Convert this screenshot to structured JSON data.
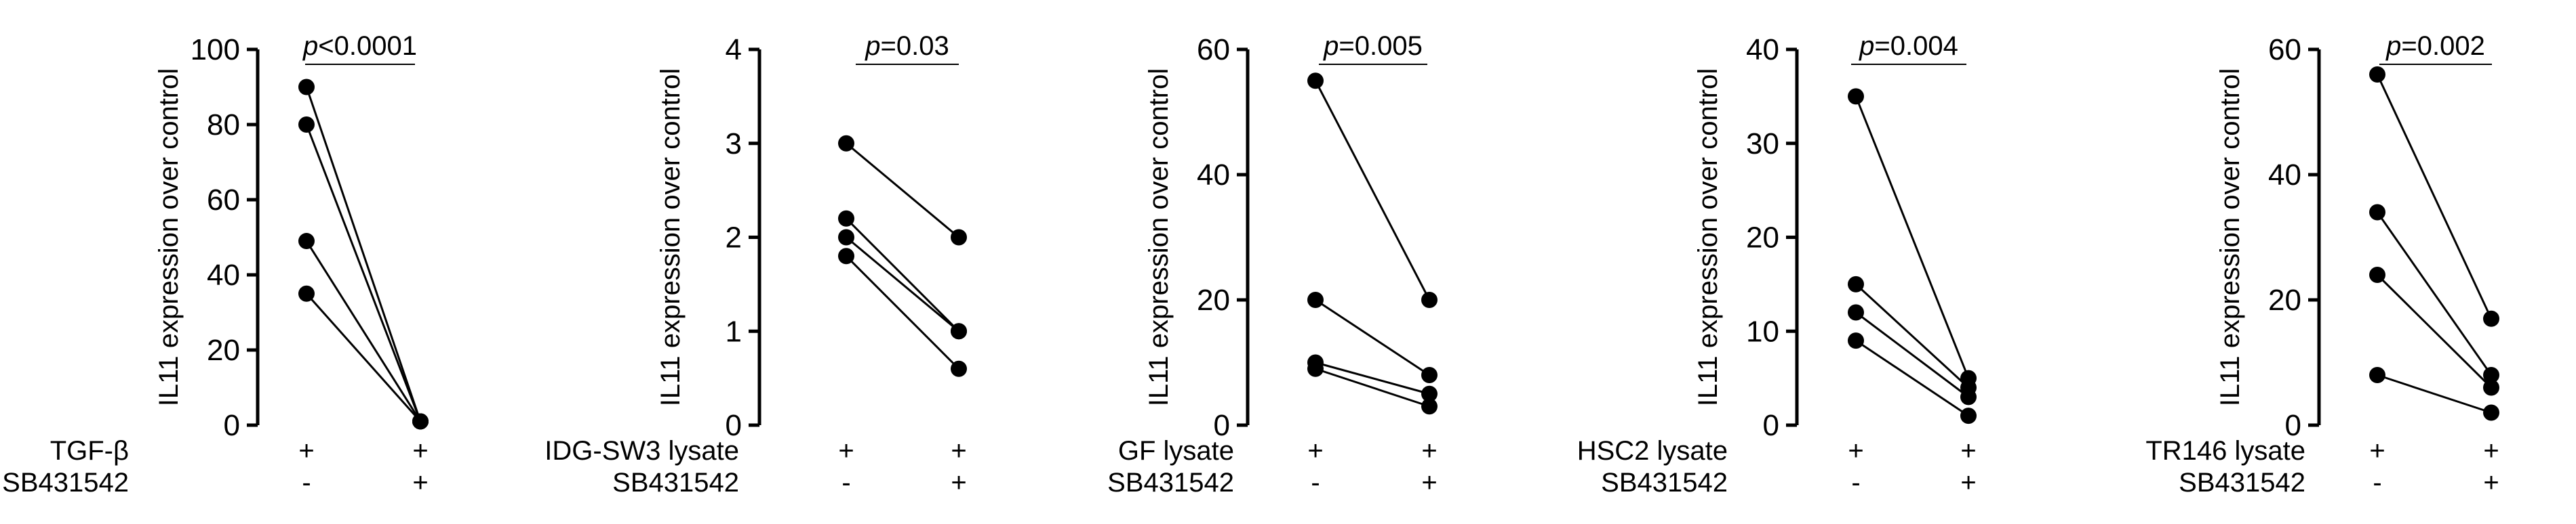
{
  "chart_data": [
    {
      "type": "scatter",
      "ylabel": "IL11 expression over control",
      "ylim": [
        0,
        100
      ],
      "yticks": [
        0,
        20,
        40,
        60,
        80,
        100
      ],
      "p_value": {
        "prefix": "p",
        "text": "<0.0001"
      },
      "conditions": [
        {
          "label": "TGF-β",
          "values": [
            "+",
            "+"
          ]
        },
        {
          "label": "SB431542",
          "values": [
            "-",
            "+"
          ]
        }
      ],
      "pairs": [
        [
          90,
          1
        ],
        [
          80,
          1
        ],
        [
          49,
          1
        ],
        [
          35,
          1
        ]
      ]
    },
    {
      "type": "scatter",
      "ylabel": "IL11 expression over control",
      "ylim": [
        0,
        4
      ],
      "yticks": [
        0,
        1,
        2,
        3,
        4
      ],
      "p_value": {
        "prefix": "p",
        "text": "=0.03"
      },
      "conditions": [
        {
          "label": "IDG-SW3 lysate",
          "values": [
            "+",
            "+"
          ]
        },
        {
          "label": "SB431542",
          "values": [
            "-",
            "+"
          ]
        }
      ],
      "pairs": [
        [
          3.0,
          2.0
        ],
        [
          2.2,
          1.0
        ],
        [
          2.0,
          1.0
        ],
        [
          1.8,
          0.6
        ]
      ]
    },
    {
      "type": "scatter",
      "ylabel": "IL11 expression over control",
      "ylim": [
        0,
        60
      ],
      "yticks": [
        0,
        20,
        40,
        60
      ],
      "p_value": {
        "prefix": "p",
        "text": "=0.005"
      },
      "conditions": [
        {
          "label": "GF lysate",
          "values": [
            "+",
            "+"
          ]
        },
        {
          "label": "SB431542",
          "values": [
            "-",
            "+"
          ]
        }
      ],
      "pairs": [
        [
          55,
          20
        ],
        [
          20,
          8
        ],
        [
          10,
          5
        ],
        [
          9,
          3
        ]
      ]
    },
    {
      "type": "scatter",
      "ylabel": "IL11 expression over control",
      "ylim": [
        0,
        40
      ],
      "yticks": [
        0,
        10,
        20,
        30,
        40
      ],
      "p_value": {
        "prefix": "p",
        "text": "=0.004"
      },
      "conditions": [
        {
          "label": "HSC2 lysate",
          "values": [
            "+",
            "+"
          ]
        },
        {
          "label": "SB431542",
          "values": [
            "-",
            "+"
          ]
        }
      ],
      "pairs": [
        [
          35,
          5
        ],
        [
          15,
          4
        ],
        [
          12,
          3
        ],
        [
          9,
          1
        ]
      ]
    },
    {
      "type": "scatter",
      "ylabel": "IL11 expression over control",
      "ylim": [
        0,
        60
      ],
      "yticks": [
        0,
        20,
        40,
        60
      ],
      "p_value": {
        "prefix": "p",
        "text": "=0.002"
      },
      "conditions": [
        {
          "label": "TR146 lysate",
          "values": [
            "+",
            "+"
          ]
        },
        {
          "label": "SB431542",
          "values": [
            "-",
            "+"
          ]
        }
      ],
      "pairs": [
        [
          56,
          17
        ],
        [
          34,
          8
        ],
        [
          24,
          6
        ],
        [
          8,
          2
        ]
      ]
    }
  ]
}
